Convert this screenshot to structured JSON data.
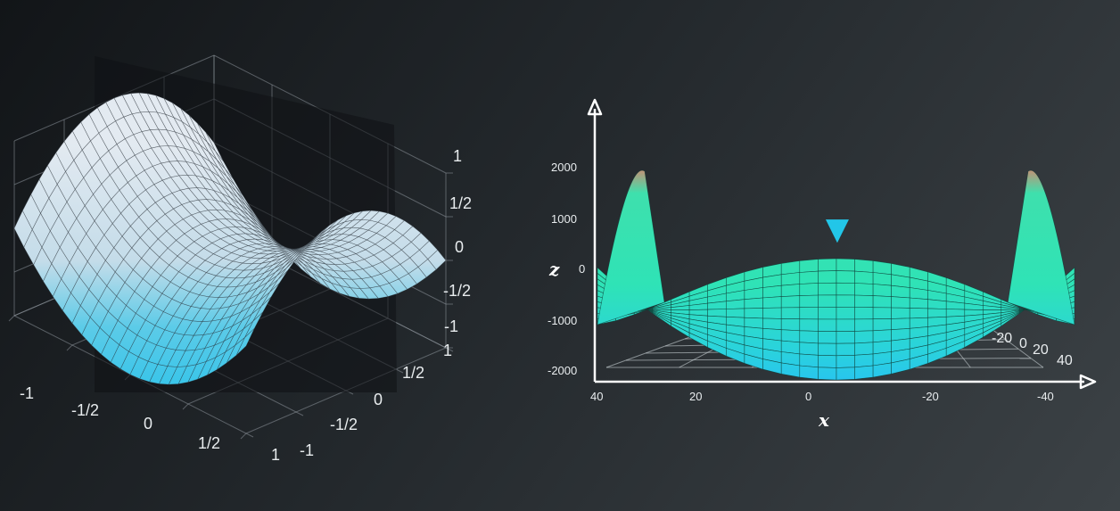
{
  "chart_data": [
    {
      "type": "surface",
      "function": "z = x^2 - y^2",
      "x": [
        -1,
        1
      ],
      "y": [
        -1,
        1
      ],
      "zlim": [
        -1,
        1
      ],
      "x_ticks": [
        "-1",
        "-1/2",
        "0",
        "1/2",
        "1"
      ],
      "y_ticks": [
        "-1",
        "-1/2",
        "0",
        "1/2",
        "1"
      ],
      "z_ticks": [
        "1",
        "1/2",
        "0",
        "-1/2",
        "-1"
      ],
      "grid": true,
      "colors": {
        "surface_high": "#dfe8f0",
        "surface_low": "#2bc6ea",
        "mesh": "#2a3138",
        "plane": "#0e1114"
      }
    },
    {
      "type": "surface-projection",
      "x_ticks": [
        "40",
        "20",
        "0",
        "-20",
        "-40"
      ],
      "y_ticks": [
        "-20",
        "0",
        "20",
        "40"
      ],
      "z_ticks": [
        "2000",
        "1000",
        "0",
        "-1000",
        "-2000"
      ],
      "xlabel": "x",
      "zlabel": "z",
      "marker": "▼",
      "colors": {
        "surface": "#2ee3b4",
        "surface_low": "#2ad0e8",
        "peak": "#e07a64",
        "marker": "#22c6e8",
        "axis": "#ffffff"
      }
    }
  ]
}
